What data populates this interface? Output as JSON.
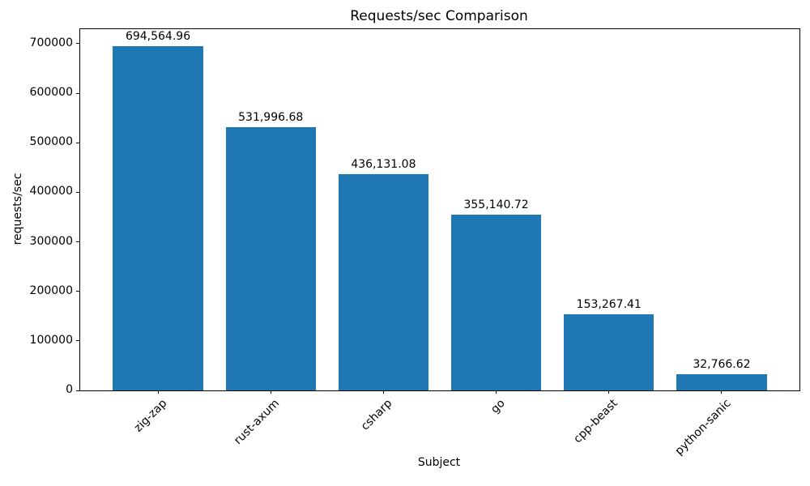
{
  "chart_data": {
    "type": "bar",
    "title": "Requests/sec Comparison",
    "xlabel": "Subject",
    "ylabel": "requests/sec",
    "categories": [
      "zig-zap",
      "rust-axum",
      "csharp",
      "go",
      "cpp-beast",
      "python-sanic"
    ],
    "values": [
      694564.96,
      531996.68,
      436131.08,
      355140.72,
      153267.41,
      32766.62
    ],
    "value_labels": [
      "694,564.96",
      "531,996.68",
      "436,131.08",
      "355,140.72",
      "153,267.41",
      "32,766.62"
    ],
    "yticks": [
      0,
      100000,
      200000,
      300000,
      400000,
      500000,
      600000,
      700000
    ],
    "ytick_labels": [
      "0",
      "100000",
      "200000",
      "300000",
      "400000",
      "500000",
      "600000",
      "700000"
    ],
    "ylim": [
      0,
      729293
    ],
    "bar_color": "#1f77b4",
    "bar_width_ratio": 0.8,
    "xtick_rotation_deg": 45,
    "grid": false,
    "legend": null
  }
}
